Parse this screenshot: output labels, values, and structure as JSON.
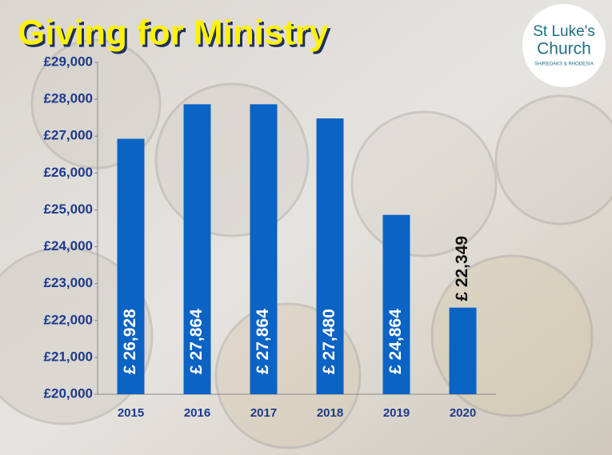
{
  "chart_data": {
    "type": "bar",
    "title": "Giving for Ministry",
    "logo": {
      "name_line1": "St Luke's",
      "name_line2": "Church",
      "tagline": "SHIREOAKS & RHODESIA"
    },
    "categories": [
      "2015",
      "2016",
      "2017",
      "2018",
      "2019",
      "2020"
    ],
    "values": [
      26928,
      27864,
      27864,
      27480,
      24864,
      22349
    ],
    "value_labels": [
      "£ 26,928",
      "£ 27,864",
      "£ 27,864",
      "£ 27,480",
      "£ 24,864",
      "£ 22,349"
    ],
    "color": "#0b63c4",
    "ylim": [
      20000,
      29000
    ],
    "yticks": [
      {
        "value": 20000,
        "label": "£20,000"
      },
      {
        "value": 21000,
        "label": "£21,000"
      },
      {
        "value": 22000,
        "label": "£22,000"
      },
      {
        "value": 23000,
        "label": "£23,000"
      },
      {
        "value": 24000,
        "label": "£24,000"
      },
      {
        "value": 25000,
        "label": "£25,000"
      },
      {
        "value": 26000,
        "label": "£26,000"
      },
      {
        "value": 27000,
        "label": "£27,000"
      },
      {
        "value": 28000,
        "label": "£28,000"
      },
      {
        "value": 29000,
        "label": "£29,000"
      }
    ],
    "grid": false
  }
}
